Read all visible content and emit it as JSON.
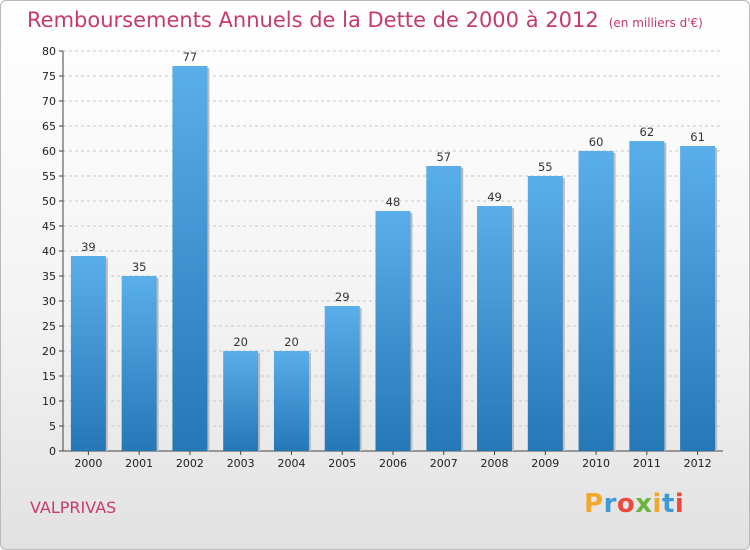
{
  "header": {
    "title": "Remboursements Annuels de la Dette de 2000 à 2012",
    "subtitle": "(en milliers d'€)"
  },
  "footer": {
    "commune": "VALPRIVAS",
    "logo_text": "Proxiti",
    "logo_colors": [
      "#f2a72e",
      "#3e9ad6",
      "#e94b3c",
      "#6bb43f",
      "#f2a72e",
      "#3e9ad6",
      "#e94b3c"
    ]
  },
  "colors": {
    "title": "#c8396e",
    "bar_top": "#5aaee9",
    "bar_bottom": "#2577b6",
    "grid": "#c8c8c8"
  },
  "chart_data": {
    "type": "bar",
    "categories": [
      "2000",
      "2001",
      "2002",
      "2003",
      "2004",
      "2005",
      "2006",
      "2007",
      "2008",
      "2009",
      "2010",
      "2011",
      "2012"
    ],
    "values": [
      39,
      35,
      77,
      20,
      20,
      29,
      48,
      57,
      49,
      55,
      60,
      62,
      61
    ],
    "ylim": [
      0,
      80
    ],
    "yticks": [
      0,
      5,
      10,
      15,
      20,
      25,
      30,
      35,
      40,
      45,
      50,
      55,
      60,
      65,
      70,
      75,
      80
    ],
    "grid": "horizontal dashed",
    "data_labels": true
  }
}
